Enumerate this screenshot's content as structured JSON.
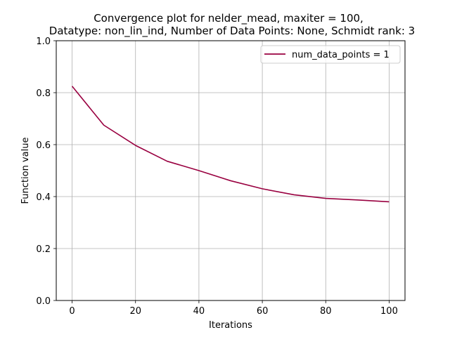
{
  "chart_data": {
    "type": "line",
    "title_line1": "Convergence plot for nelder_mead, maxiter = 100,",
    "title_line2": "Datatype: non_lin_ind, Number of Data Points: None, Schmidt rank: 3",
    "xlabel": "Iterations",
    "ylabel": "Function value",
    "xlim": [
      -5,
      105
    ],
    "ylim": [
      0,
      1
    ],
    "x_ticks": [
      0,
      20,
      40,
      60,
      80,
      100
    ],
    "x_tick_labels": [
      "0",
      "20",
      "40",
      "60",
      "80",
      "100"
    ],
    "y_ticks": [
      0,
      0.2,
      0.4,
      0.6,
      0.8,
      1.0
    ],
    "y_tick_labels": [
      "0.0",
      "0.2",
      "0.4",
      "0.6",
      "0.8",
      "1.0"
    ],
    "grid": true,
    "legend_position": "top-right",
    "series": [
      {
        "name": "num_data_points = 1",
        "color": "#990040",
        "x": [
          0,
          10,
          20,
          30,
          40,
          50,
          60,
          70,
          80,
          90,
          100
        ],
        "y": [
          0.825,
          0.675,
          0.597,
          0.536,
          0.5,
          0.461,
          0.43,
          0.407,
          0.393,
          0.387,
          0.38
        ]
      }
    ]
  }
}
